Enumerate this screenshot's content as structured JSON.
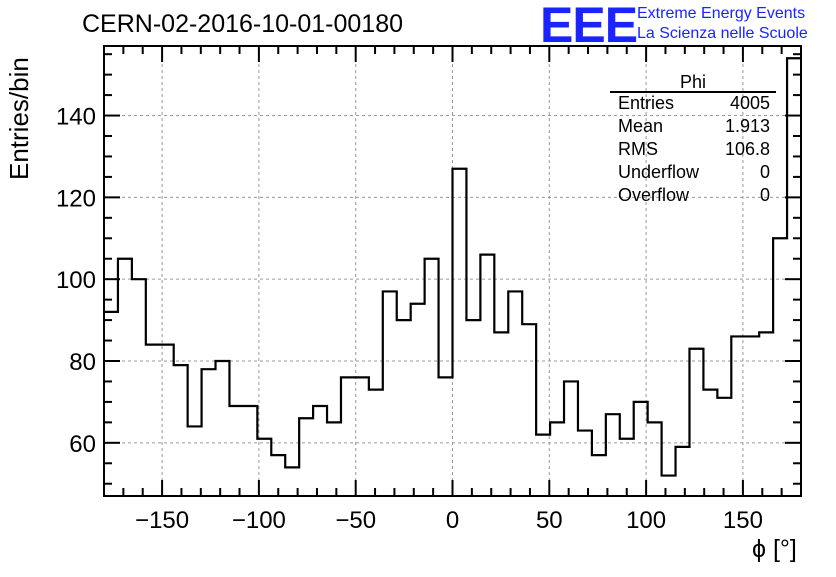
{
  "header": {
    "title": "CERN-02-2016-10-01-00180",
    "logo_letters": "EEE",
    "logo_line1": "Extreme Energy Events",
    "logo_line2": "La Scienza nelle Scuole",
    "logo_color": "#1a24ff"
  },
  "stats": {
    "name": "Phi",
    "rows": [
      {
        "label": "Entries",
        "value": "4005"
      },
      {
        "label": "Mean",
        "value": "1.913"
      },
      {
        "label": "RMS",
        "value": "106.8"
      },
      {
        "label": "Underflow",
        "value": "0"
      },
      {
        "label": "Overflow",
        "value": "0"
      }
    ]
  },
  "chart_data": {
    "type": "histogram",
    "xlabel": "ϕ [°]",
    "ylabel": "Entries/bin",
    "xlim": [
      -180,
      180
    ],
    "ylim": [
      47,
      157
    ],
    "bin_width": 7.2,
    "x_ticks": [
      -150,
      -100,
      -50,
      0,
      50,
      100,
      150
    ],
    "x_tick_labels": [
      "−150",
      "−100",
      "−50",
      "0",
      "50",
      "100",
      "150"
    ],
    "y_ticks": [
      60,
      80,
      100,
      120,
      140
    ],
    "y_tick_labels": [
      "60",
      "80",
      "100",
      "120",
      "140"
    ],
    "grid": true,
    "values": [
      92,
      105,
      100,
      84,
      84,
      79,
      64,
      78,
      80,
      69,
      69,
      61,
      57,
      54,
      66,
      69,
      65,
      76,
      76,
      73,
      97,
      90,
      94,
      105,
      76,
      127,
      90,
      106,
      87,
      97,
      89,
      62,
      65,
      75,
      63,
      57,
      67,
      61,
      70,
      65,
      52,
      59,
      83,
      73,
      71,
      86,
      86,
      87,
      110,
      154
    ]
  }
}
